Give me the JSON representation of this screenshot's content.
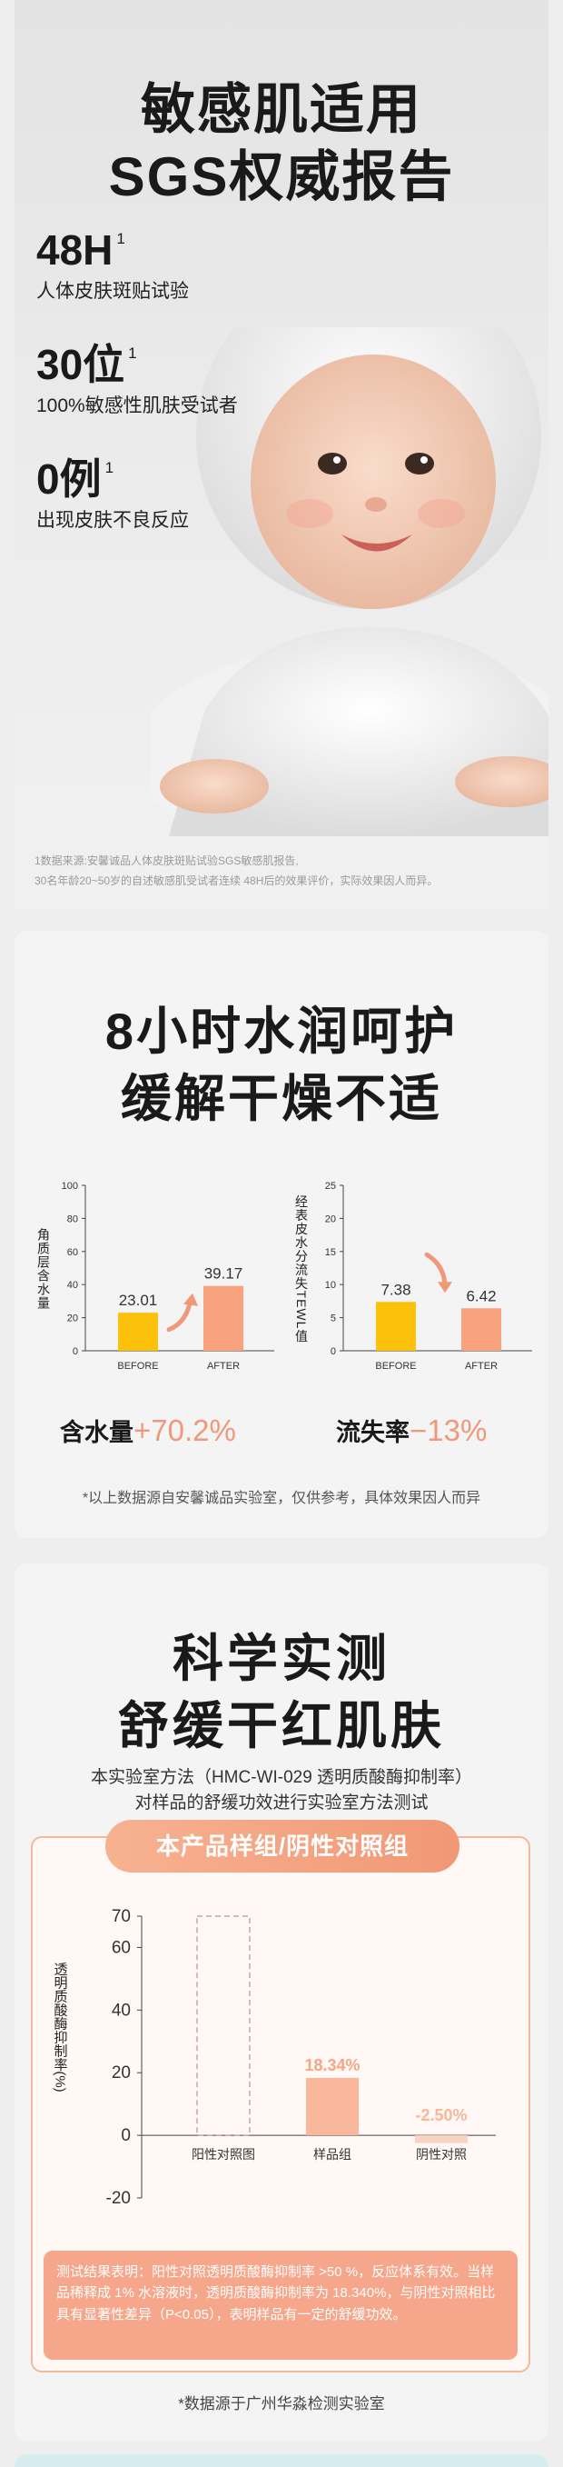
{
  "hero": {
    "title_line1": "敏感肌适用",
    "title_line2": "SGS权威报告",
    "stats": [
      {
        "value": "48H",
        "sup": "1",
        "desc": "人体皮肤斑贴试验"
      },
      {
        "value": "30位",
        "sup": "1",
        "desc": "100%敏感性肌肤受试者"
      },
      {
        "value": "0例",
        "sup": "1",
        "desc": "出现皮肤不良反应"
      }
    ],
    "note_line1": "1数据来源:安馨诚品人体皮肤斑贴试验SGS敏感肌报告,",
    "note_line2": "30名年龄20~50岁的自述敏感肌受试者连续 48H后的效果评价，实际效果因人而异。"
  },
  "hydration": {
    "title_line1": "8小时水润呵护",
    "title_line2": "缓解干燥不适",
    "result1_label": "含水量",
    "result1_value": "+70.2%",
    "result2_label": "流失率",
    "result2_value": "−13%",
    "footnote": "*以上数据源自安馨诚品实验室，仅供参考，具体效果因人而异"
  },
  "soothing": {
    "title_line1": "科学实测",
    "title_line2": "舒缓干红肌肤",
    "subtitle_line1": "本实验室方法（HMC-WI-029 透明质酸酶抑制率）",
    "subtitle_line2": "对样品的舒缓功效进行实验室方法测试",
    "pill_label": "本产品样组/阴性对照组",
    "conclusion": "测试结果表明：阳性对照透明质酸酶抑制率 >50 %，反应体系有效。当样品稀释成 1% 水溶液时，透明质酸酶抑制率为 18.340%，与阴性对照相比具有显著性差异（P<0.05），表明样品有一定的舒缓功效。",
    "footnote": "*数据源于广州华淼检测实验室"
  },
  "colors": {
    "accent": "#f0987a",
    "before_bar": "#fbc10b",
    "after_bar": "#f9a27e",
    "panel_border": "#f4b89d"
  },
  "chart_data": [
    {
      "type": "bar",
      "categories": [
        "BEFORE",
        "AFTER"
      ],
      "values": [
        23.01,
        39.17
      ],
      "ylabel": "角质层含水量",
      "ylim": [
        0,
        100
      ],
      "yticks": [
        0,
        20,
        40,
        60,
        80,
        100
      ],
      "value_labels": [
        "23.01",
        "39.17"
      ]
    },
    {
      "type": "bar",
      "categories": [
        "BEFORE",
        "AFTER"
      ],
      "values": [
        7.38,
        6.42
      ],
      "ylabel": "经表皮水分流失TEWL值",
      "ylim": [
        0,
        25
      ],
      "yticks": [
        0,
        5,
        10,
        15,
        20,
        25
      ],
      "value_labels": [
        "7.38",
        "6.42"
      ]
    },
    {
      "type": "bar",
      "categories": [
        "阳性对照图",
        "样品组",
        "阴性对照"
      ],
      "values": [
        70,
        18.34,
        -2.5
      ],
      "value_labels": [
        "",
        "18.34%",
        "-2.50%"
      ],
      "ylabel": "透明质酸酶抑制率(%)",
      "ylim": [
        -20,
        70
      ],
      "yticks": [
        -20,
        0,
        20,
        40,
        60,
        70
      ]
    }
  ]
}
